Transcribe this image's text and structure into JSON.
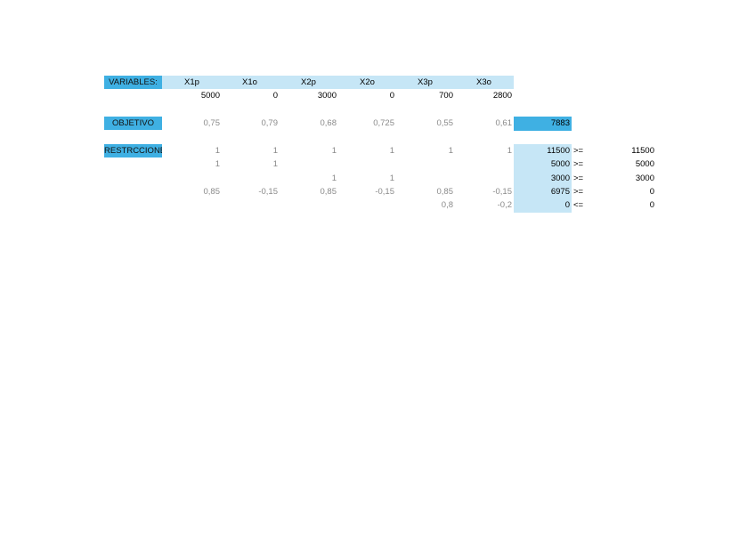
{
  "labels": {
    "variables": "VARIABLES:",
    "objetivo": "OBJETIVO",
    "restricciones": "RESTRCCIONES"
  },
  "headers": [
    "X1p",
    "X1o",
    "X2p",
    "X2o",
    "X3p",
    "X3o"
  ],
  "values": [
    "5000",
    "0",
    "3000",
    "0",
    "700",
    "2800"
  ],
  "objective": {
    "coefficients": [
      "0,75",
      "0,79",
      "0,68",
      "0,725",
      "0,55",
      "0,61"
    ],
    "result": "7883"
  },
  "constraints": [
    {
      "coefficients": [
        "1",
        "1",
        "1",
        "1",
        "1",
        "1"
      ],
      "lhs": "11500",
      "op": ">=",
      "rhs": "11500"
    },
    {
      "coefficients": [
        "1",
        "1",
        "",
        "",
        "",
        ""
      ],
      "lhs": "5000",
      "op": ">=",
      "rhs": "5000"
    },
    {
      "coefficients": [
        "",
        "",
        "1",
        "1",
        "",
        ""
      ],
      "lhs": "3000",
      "op": ">=",
      "rhs": "3000"
    },
    {
      "coefficients": [
        "0,85",
        "-0,15",
        "0,85",
        "-0,15",
        "0,85",
        "-0,15"
      ],
      "lhs": "6975",
      "op": ">=",
      "rhs": "0"
    },
    {
      "coefficients": [
        "",
        "",
        "",
        "",
        "0,8",
        "-0,2"
      ],
      "lhs": "0",
      "op": "<=",
      "rhs": "0"
    }
  ]
}
